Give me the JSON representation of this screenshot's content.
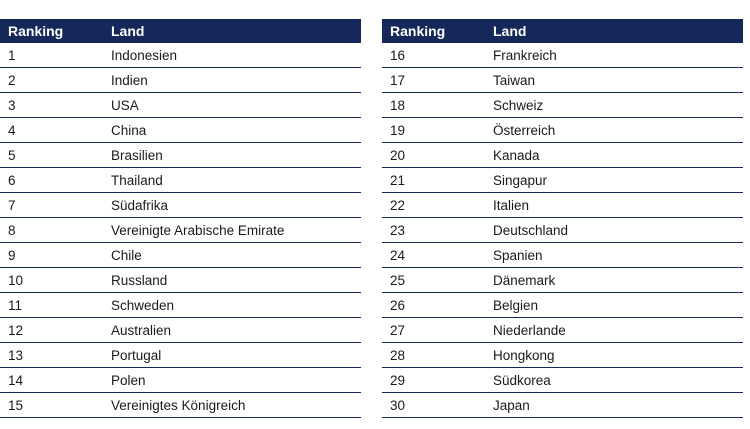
{
  "headers": {
    "ranking": "Ranking",
    "land": "Land"
  },
  "left": [
    {
      "rank": "1",
      "land": "Indonesien"
    },
    {
      "rank": "2",
      "land": "Indien"
    },
    {
      "rank": "3",
      "land": "USA"
    },
    {
      "rank": "4",
      "land": "China"
    },
    {
      "rank": "5",
      "land": "Brasilien"
    },
    {
      "rank": "6",
      "land": "Thailand"
    },
    {
      "rank": "7",
      "land": "Südafrika"
    },
    {
      "rank": "8",
      "land": "Vereinigte Arabische Emirate"
    },
    {
      "rank": "9",
      "land": "Chile"
    },
    {
      "rank": "10",
      "land": "Russland"
    },
    {
      "rank": "11",
      "land": "Schweden"
    },
    {
      "rank": "12",
      "land": "Australien"
    },
    {
      "rank": "13",
      "land": "Portugal"
    },
    {
      "rank": "14",
      "land": "Polen"
    },
    {
      "rank": "15",
      "land": "Vereinigtes Königreich"
    }
  ],
  "right": [
    {
      "rank": "16",
      "land": "Frankreich"
    },
    {
      "rank": "17",
      "land": "Taiwan"
    },
    {
      "rank": "18",
      "land": "Schweiz"
    },
    {
      "rank": "19",
      "land": "Österreich"
    },
    {
      "rank": "20",
      "land": "Kanada"
    },
    {
      "rank": "21",
      "land": "Singapur"
    },
    {
      "rank": "22",
      "land": "Italien"
    },
    {
      "rank": "23",
      "land": "Deutschland"
    },
    {
      "rank": "24",
      "land": "Spanien"
    },
    {
      "rank": "25",
      "land": "Dänemark"
    },
    {
      "rank": "26",
      "land": "Belgien"
    },
    {
      "rank": "27",
      "land": "Niederlande"
    },
    {
      "rank": "28",
      "land": "Hongkong"
    },
    {
      "rank": "29",
      "land": "Südkorea"
    },
    {
      "rank": "30",
      "land": "Japan"
    }
  ],
  "colors": {
    "header_bg": "#14285a",
    "header_text": "#ffffff",
    "divider": "#14285a"
  }
}
